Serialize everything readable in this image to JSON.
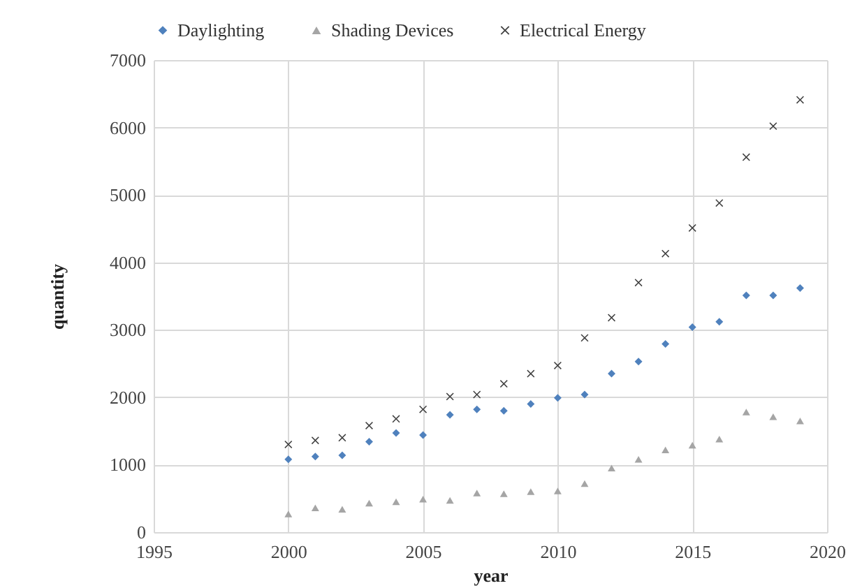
{
  "chart_data": {
    "type": "scatter",
    "xlabel": "year",
    "ylabel": "quantity",
    "x": [
      2000,
      2001,
      2002,
      2003,
      2004,
      2005,
      2006,
      2007,
      2008,
      2009,
      2010,
      2011,
      2012,
      2013,
      2014,
      2015,
      2016,
      2017,
      2018,
      2019
    ],
    "series": [
      {
        "name": "Daylighting",
        "color": "#4f81bd",
        "marker": "diamond",
        "values": [
          1080,
          1120,
          1140,
          1340,
          1470,
          1440,
          1740,
          1820,
          1800,
          1900,
          1990,
          2040,
          2350,
          2530,
          2790,
          3040,
          3120,
          3510,
          3510,
          3620
        ]
      },
      {
        "name": "Shading Devices",
        "color": "#a5a5a5",
        "marker": "triangle",
        "values": [
          270,
          360,
          340,
          430,
          450,
          490,
          470,
          580,
          570,
          600,
          610,
          720,
          950,
          1080,
          1220,
          1290,
          1380,
          1780,
          1710,
          1650
        ]
      },
      {
        "name": "Electrical Energy",
        "color": "#404040",
        "marker": "cross",
        "values": [
          1300,
          1360,
          1400,
          1580,
          1680,
          1820,
          2010,
          2040,
          2200,
          2350,
          2470,
          2880,
          3180,
          3700,
          4130,
          4510,
          4880,
          5560,
          6020,
          6410
        ]
      }
    ],
    "xlim": [
      1995,
      2020
    ],
    "xticks": [
      1995,
      2000,
      2005,
      2010,
      2015,
      2020
    ],
    "ylim": [
      0,
      7000
    ],
    "yticks": [
      0,
      1000,
      2000,
      3000,
      4000,
      5000,
      6000,
      7000
    ],
    "grid": true,
    "legend": "top"
  }
}
